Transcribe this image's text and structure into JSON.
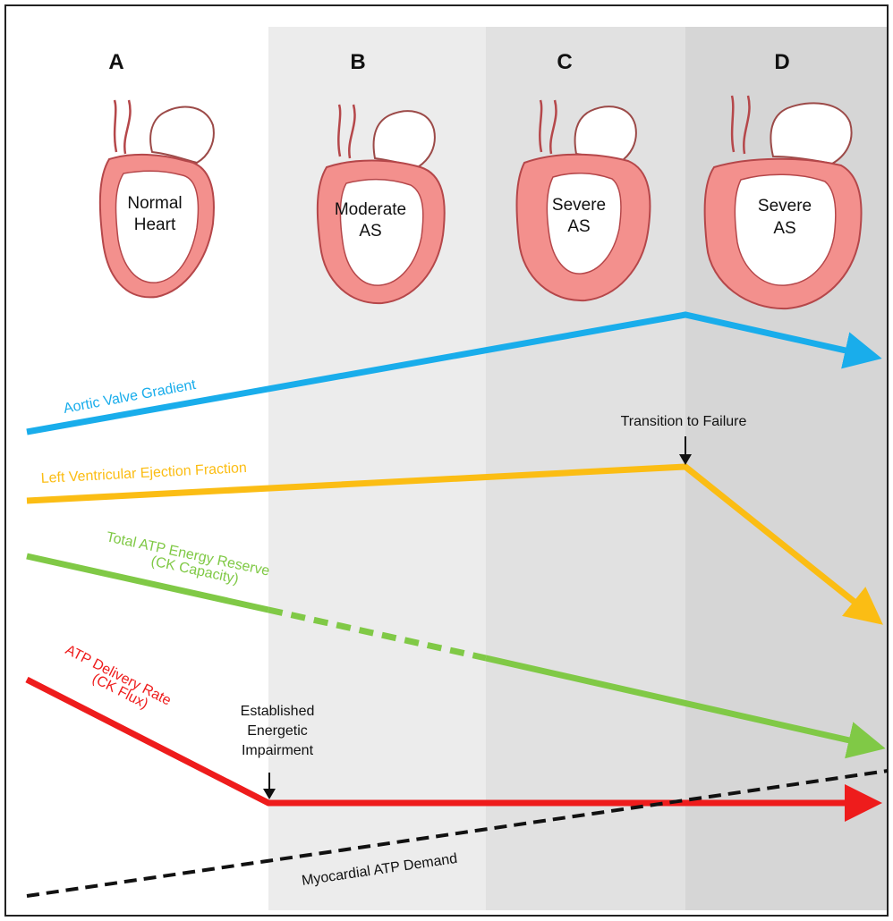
{
  "colors": {
    "panel_b_bg": "#ececec",
    "panel_c_bg": "#e0e0e0",
    "panel_d_bg": "#d6d6d6",
    "heart_fill": "#f3908d",
    "heart_outline": "#b5474a",
    "aortic_gradient": "#19adeb",
    "ejection_fraction": "#fbbd14",
    "atp_reserve": "#80c946",
    "atp_delivery": "#ee1c1c",
    "atp_demand": "#111111"
  },
  "panels": [
    {
      "letter": "A",
      "heart_label_1": "Normal",
      "heart_label_2": "Heart"
    },
    {
      "letter": "B",
      "heart_label_1": "Moderate",
      "heart_label_2": "AS"
    },
    {
      "letter": "C",
      "heart_label_1": "Severe",
      "heart_label_2": "AS"
    },
    {
      "letter": "D",
      "heart_label_1": "Severe",
      "heart_label_2": "AS"
    }
  ],
  "lines": {
    "aortic_gradient": {
      "label": "Aortic Valve Gradient"
    },
    "ejection_fraction": {
      "label": "Left Ventricular Ejection Fraction"
    },
    "atp_reserve": {
      "label_1": "Total ATP Energy Reserve",
      "label_2": "(CK Capacity)"
    },
    "atp_delivery": {
      "label_1": "ATP Delivery Rate",
      "label_2": "(CK Flux)"
    },
    "atp_demand": {
      "label": "Myocardial ATP Demand"
    }
  },
  "annotations": {
    "transition": "Transition to Failure",
    "impairment_1": "Established",
    "impairment_2": "Energetic",
    "impairment_3": "Impairment"
  }
}
